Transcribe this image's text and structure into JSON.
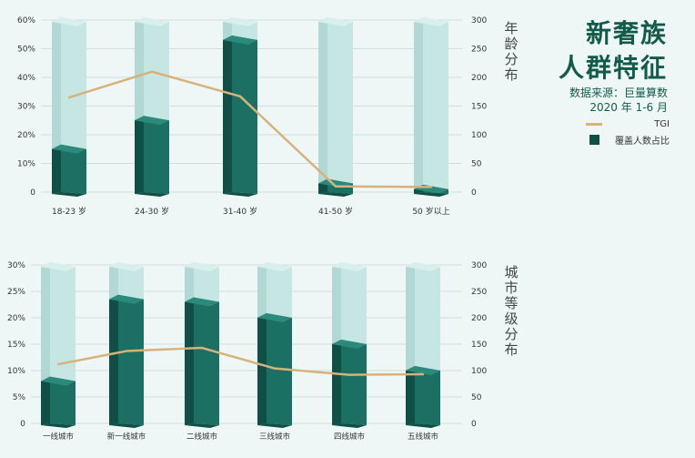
{
  "title": {
    "line1": "新奢族",
    "line2": "人群特征"
  },
  "source": {
    "line1": "数据来源：巨量算数",
    "line2": "2020 年 1-6 月"
  },
  "legend": {
    "tgi": "TGI",
    "coverage": "覆盖人数占比"
  },
  "colors": {
    "bar_front": "#1b6f63",
    "bar_side": "#0f4f45",
    "bar_top": "#2a8a7b",
    "ghost_front": "#c5e6e3",
    "ghost_side": "#b2d8d5",
    "ghost_top": "#d8efed",
    "tgi_line": "#d8b27c",
    "grid": "#c9d6d3",
    "axis_text": "#333333"
  },
  "chart_data": [
    {
      "type": "bar",
      "side_label": "年龄分布",
      "categories": [
        "18-23 岁",
        "24-30 岁",
        "31-40 岁",
        "41-50 岁",
        "50 岁以上"
      ],
      "series": [
        {
          "name": "覆盖人数占比",
          "axis": "left",
          "values": [
            15,
            25,
            53,
            3,
            1
          ]
        },
        {
          "name": "TGI",
          "type": "line",
          "axis": "right",
          "values": [
            165,
            210,
            167,
            10,
            9
          ]
        }
      ],
      "left_ticks": [
        "60%",
        "50%",
        "40%",
        "30%",
        "20%",
        "10%",
        "0"
      ],
      "right_ticks": [
        "300",
        "250",
        "200",
        "150",
        "100",
        "50",
        "0"
      ],
      "ylim_left": [
        0,
        60
      ],
      "ylim_right": [
        0,
        300
      ],
      "grid": true
    },
    {
      "type": "bar",
      "side_label": "城市等级分布",
      "categories": [
        "一线城市",
        "新一线城市",
        "二线城市",
        "三线城市",
        "四线城市",
        "五线城市"
      ],
      "series": [
        {
          "name": "覆盖人数占比",
          "axis": "left",
          "values": [
            8,
            23.5,
            23,
            20,
            15,
            10
          ]
        },
        {
          "name": "TGI",
          "type": "line",
          "axis": "right",
          "values": [
            112,
            137,
            143,
            104,
            92,
            93
          ]
        }
      ],
      "left_ticks": [
        "30%",
        "25%",
        "20%",
        "15%",
        "10%",
        "5%",
        "0"
      ],
      "right_ticks": [
        "300",
        "250",
        "200",
        "150",
        "100",
        "50",
        "0"
      ],
      "ylim_left": [
        0,
        30
      ],
      "ylim_right": [
        0,
        300
      ],
      "grid": true
    }
  ]
}
